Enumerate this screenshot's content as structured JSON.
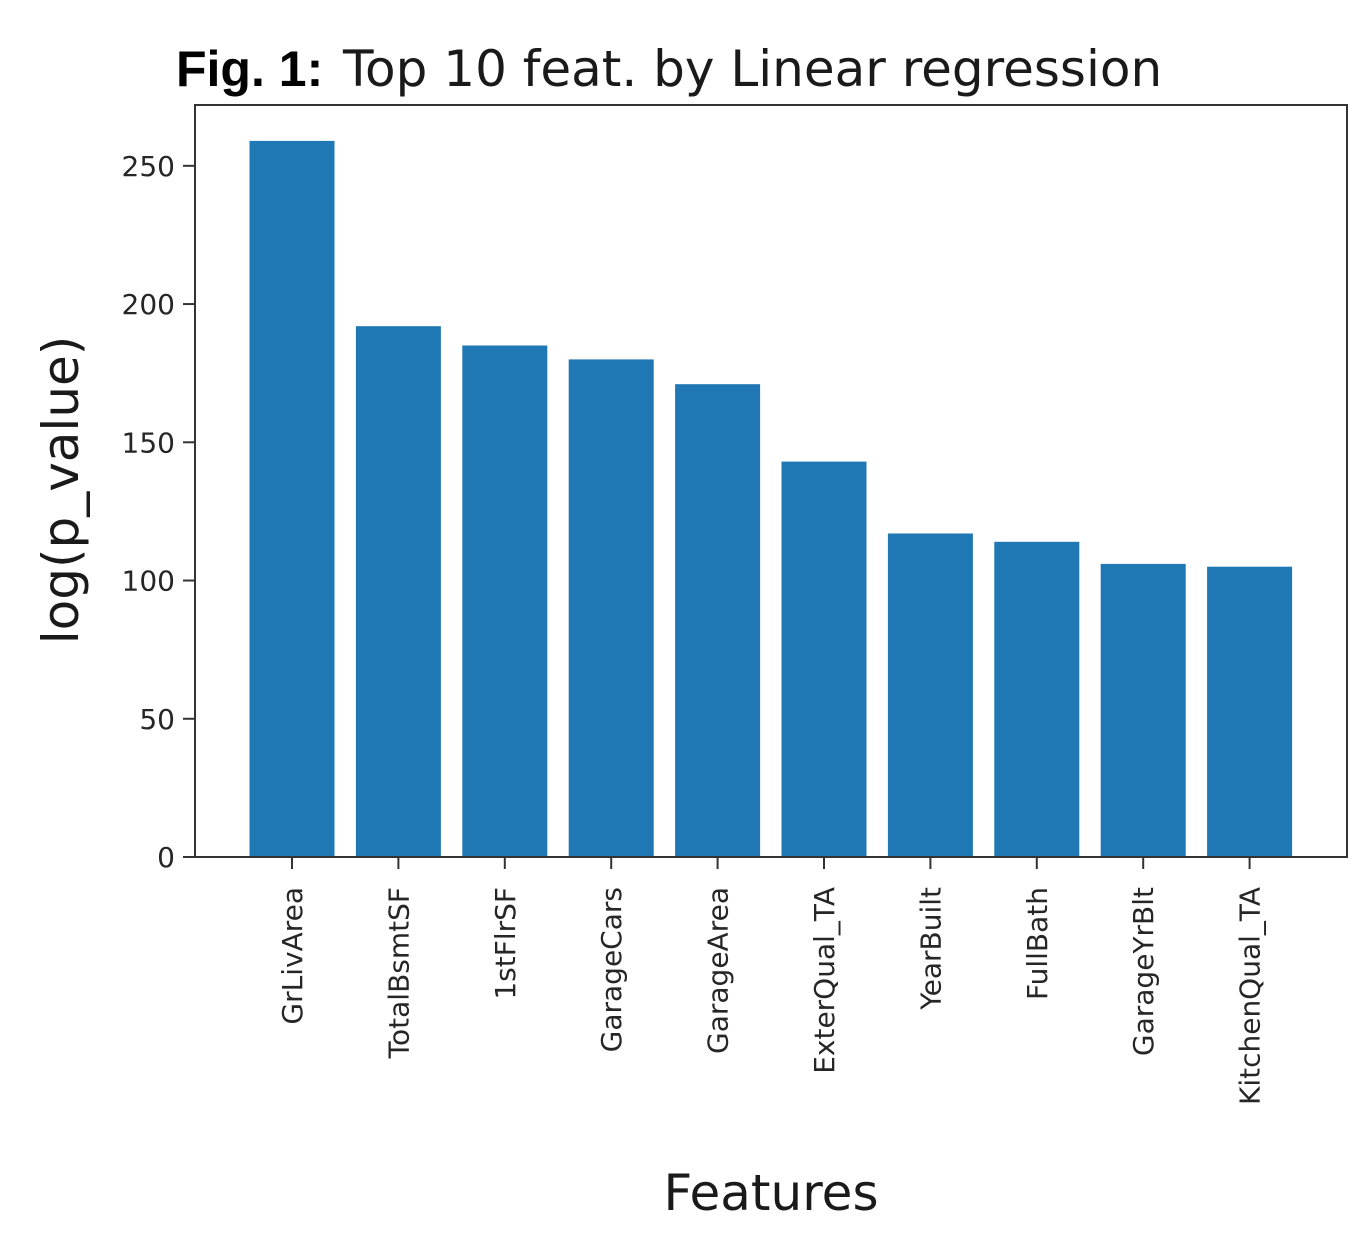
{
  "figure": {
    "label": "Fig. 1:",
    "title": "Top 10 feat. by Linear regression"
  },
  "chart_data": {
    "type": "bar",
    "categories": [
      "GrLivArea",
      "TotalBsmtSF",
      "1stFlrSF",
      "GarageCars",
      "GarageArea",
      "ExterQual_TA",
      "YearBuilt",
      "FullBath",
      "GarageYrBlt",
      "KitchenQual_TA"
    ],
    "values": [
      259,
      192,
      185,
      180,
      171,
      143,
      117,
      114,
      106,
      105
    ],
    "xlabel": "Features",
    "ylabel": "log(p_value)",
    "ylim": [
      0,
      272
    ],
    "yticks": [
      0,
      50,
      100,
      150,
      200,
      250
    ],
    "bar_color": "#1f77b4",
    "grid": false
  }
}
